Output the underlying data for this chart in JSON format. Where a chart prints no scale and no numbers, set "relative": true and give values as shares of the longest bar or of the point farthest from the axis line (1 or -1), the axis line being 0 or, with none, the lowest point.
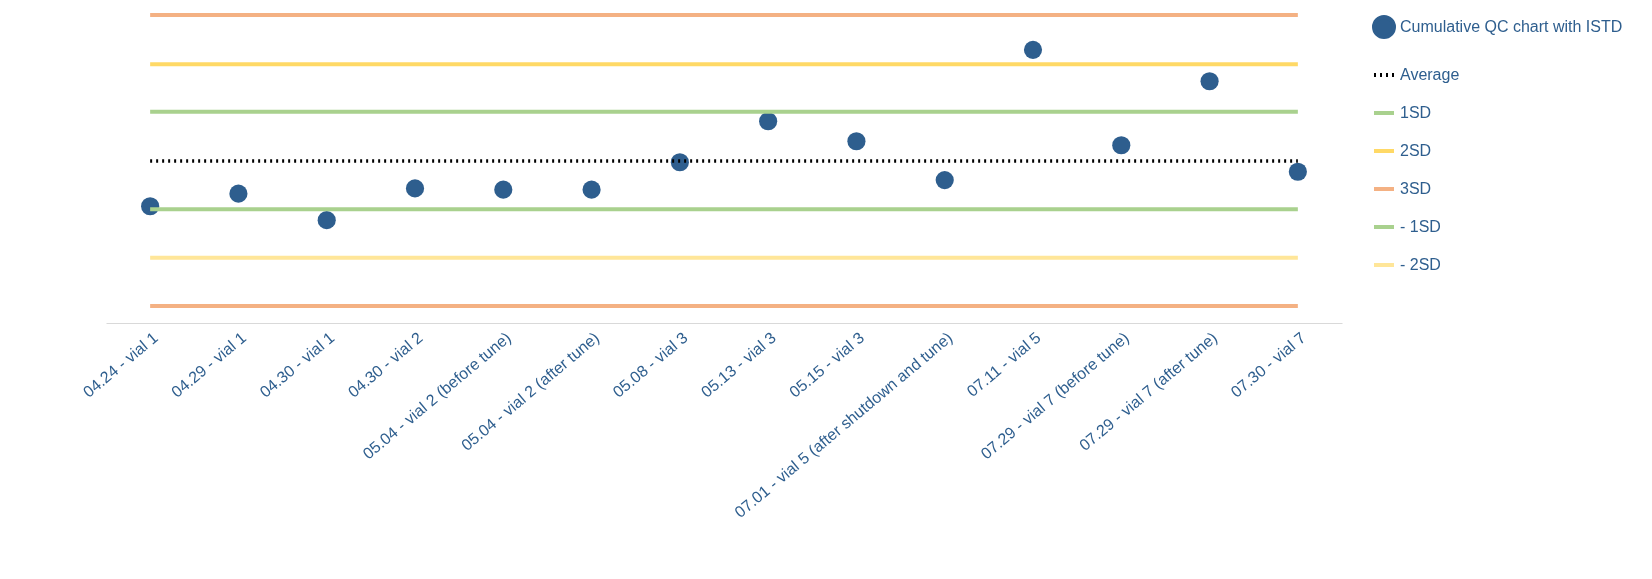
{
  "chart_data": {
    "type": "scatter",
    "relative": true,
    "legend": "right",
    "categories": [
      "04.24 - vial 1",
      "04.29 - vial 1",
      "04.30 - vial 1",
      "04.30 - vial 2",
      "05.04 - vial 2 (before tune)",
      "05.04 - vial 2 (after tune)",
      "05.08 - vial 3",
      "05.13 - vial 3",
      "05.15 - vial 3",
      "07.01 - vial 5 (after shutdown and tune)",
      "07.11 - vial 5",
      "07.29 - vial 7 (before tune)",
      "07.29 - vial 7 (after tune)",
      "07.30 - vial 7"
    ],
    "series": [
      {
        "name": "Cumulative QC chart with ISTD",
        "marker": "circle",
        "color": "#2e5e8e",
        "values": [
          0.379,
          0.42,
          0.334,
          0.437,
          0.433,
          0.433,
          0.522,
          0.655,
          0.59,
          0.464,
          0.887,
          0.577,
          0.785,
          0.491
        ]
      },
      {
        "name": "Average",
        "type": "line",
        "line_style": "dotted",
        "color": "#000000",
        "values": [
          0.526,
          0.526,
          0.526,
          0.526,
          0.526,
          0.526,
          0.526,
          0.526,
          0.526,
          0.526,
          0.526,
          0.526,
          0.526,
          0.526
        ]
      },
      {
        "name": "1SD",
        "type": "line",
        "line_style": "solid",
        "color": "#a9d18e",
        "values": [
          0.686,
          0.686,
          0.686,
          0.686,
          0.686,
          0.686,
          0.686,
          0.686,
          0.686,
          0.686,
          0.686,
          0.686,
          0.686,
          0.686
        ]
      },
      {
        "name": "2SD",
        "type": "line",
        "line_style": "solid",
        "color": "#ffd966",
        "values": [
          0.84,
          0.84,
          0.84,
          0.84,
          0.84,
          0.84,
          0.84,
          0.84,
          0.84,
          0.84,
          0.84,
          0.84,
          0.84,
          0.84
        ]
      },
      {
        "name": "3SD",
        "type": "line",
        "line_style": "solid",
        "color": "#f4b183",
        "values": [
          1,
          1,
          1,
          1,
          1,
          1,
          1,
          1,
          1,
          1,
          1,
          1,
          1,
          1
        ]
      },
      {
        "name": "- 1SD",
        "type": "line",
        "line_style": "solid",
        "color": "#a9d18e",
        "values": [
          0.369,
          0.369,
          0.369,
          0.369,
          0.369,
          0.369,
          0.369,
          0.369,
          0.369,
          0.369,
          0.369,
          0.369,
          0.369,
          0.369
        ]
      },
      {
        "name": "- 2SD",
        "type": "line",
        "line_style": "solid",
        "color": "#ffe699",
        "values": [
          0.212,
          0.212,
          0.212,
          0.212,
          0.212,
          0.212,
          0.212,
          0.212,
          0.212,
          0.212,
          0.212,
          0.212,
          0.212,
          0.212
        ]
      },
      {
        "type": "line",
        "line_style": "solid",
        "color": "#f4b183",
        "values": [
          0.055,
          0.055,
          0.055,
          0.055,
          0.055,
          0.055,
          0.055,
          0.055,
          0.055,
          0.055,
          0.055,
          0.055,
          0.055,
          0.055
        ]
      }
    ]
  }
}
